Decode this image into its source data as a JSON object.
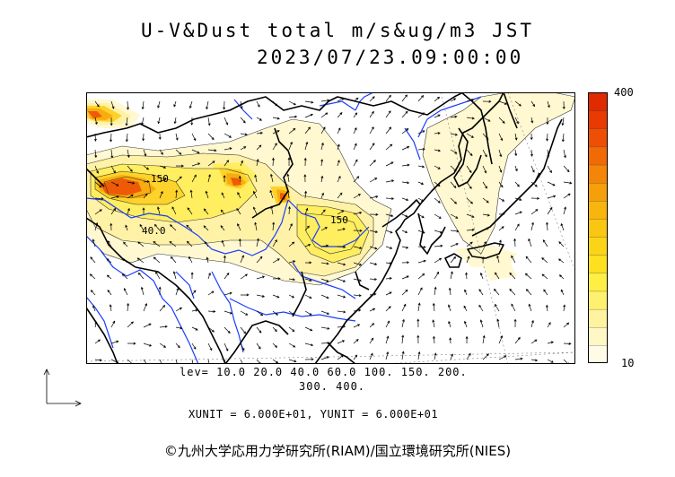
{
  "title": {
    "line1": "U-V&Dust total m/s&ug/m3 JST",
    "line2": "2023/07/23.09:00:00"
  },
  "colorbar": {
    "max_label": "400",
    "min_label": "10",
    "colors": [
      "#fffbe6",
      "#fff7c4",
      "#fff3a0",
      "#fff170",
      "#ffee44",
      "#fde020",
      "#fbd418",
      "#f9c612",
      "#f7b50e",
      "#f59f0a",
      "#f38608",
      "#f06a06",
      "#ed5004",
      "#e83a02",
      "#e02a00"
    ]
  },
  "levels": {
    "line1": "lev= 10.0 20.0 40.0 60.0 100. 150. 200.",
    "line2": "300. 400."
  },
  "units": "XUNIT = 6.000E+01, YUNIT = 6.000E+01",
  "contour_labels": [
    {
      "text": "150"
    },
    {
      "text": "40.0"
    },
    {
      "text": "150"
    }
  ],
  "credit": "©九州大学応用力学研究所(RIAM)/国立環境研究所(NIES)",
  "colors": {
    "coast": "#000000",
    "rivers": "#1a3cff",
    "arrows": "#000000",
    "frame": "#000000"
  },
  "chart_data": {
    "type": "heatmap",
    "title": "U-V&Dust total m/s&ug/m3 JST",
    "subtitle": "2023/07/23.09:00:00",
    "levels": [
      10,
      20,
      40,
      60,
      100,
      150,
      200,
      300,
      400
    ],
    "colorbar_range": [
      10,
      400
    ]
  }
}
